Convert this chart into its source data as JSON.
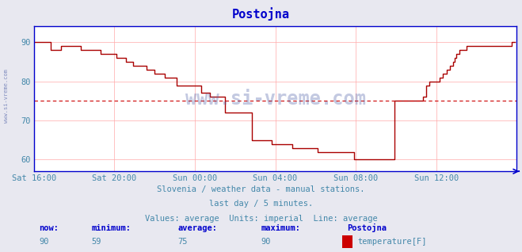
{
  "title": "Postojna",
  "subtitle_lines": [
    "Slovenia / weather data - manual stations.",
    "last day / 5 minutes.",
    "Values: average  Units: imperial  Line: average"
  ],
  "x_tick_labels": [
    "Sat 16:00",
    "Sat 20:00",
    "Sun 00:00",
    "Sun 04:00",
    "Sun 08:00",
    "Sun 12:00"
  ],
  "x_tick_positions": [
    0,
    48,
    96,
    144,
    192,
    240
  ],
  "ylim": [
    57,
    94
  ],
  "yticks": [
    60,
    70,
    80,
    90
  ],
  "xlim": [
    0,
    288
  ],
  "average_line_y": 75,
  "now": 90,
  "minimum": 59,
  "average": 75,
  "maximum": 90,
  "station": "Postojna",
  "series_label": "temperature[F]",
  "line_color": "#aa0000",
  "average_line_color": "#cc0000",
  "bg_color": "#e8e8f0",
  "plot_bg_color": "#ffffff",
  "grid_color": "#ffaaaa",
  "axis_color": "#0000cc",
  "title_color": "#0000cc",
  "text_color": "#4488aa",
  "label_color": "#0000cc",
  "watermark_color": "#5566aa",
  "legend_color": "#cc0000",
  "temp_data": [
    90,
    90,
    90,
    90,
    90,
    90,
    90,
    90,
    90,
    90,
    88,
    88,
    88,
    88,
    88,
    88,
    89,
    89,
    89,
    89,
    89,
    89,
    89,
    89,
    89,
    89,
    89,
    89,
    88,
    88,
    88,
    88,
    88,
    88,
    88,
    88,
    88,
    88,
    88,
    88,
    87,
    87,
    87,
    87,
    87,
    87,
    87,
    87,
    87,
    86,
    86,
    86,
    86,
    86,
    86,
    85,
    85,
    85,
    85,
    84,
    84,
    84,
    84,
    84,
    84,
    84,
    84,
    83,
    83,
    83,
    83,
    83,
    82,
    82,
    82,
    82,
    82,
    82,
    81,
    81,
    81,
    81,
    81,
    81,
    81,
    79,
    79,
    79,
    79,
    79,
    79,
    79,
    79,
    79,
    79,
    79,
    79,
    79,
    79,
    79,
    77,
    77,
    77,
    77,
    77,
    76,
    76,
    76,
    76,
    76,
    76,
    76,
    76,
    76,
    72,
    72,
    72,
    72,
    72,
    72,
    72,
    72,
    72,
    72,
    72,
    72,
    72,
    72,
    72,
    72,
    65,
    65,
    65,
    65,
    65,
    65,
    65,
    65,
    65,
    65,
    65,
    65,
    64,
    64,
    64,
    64,
    64,
    64,
    64,
    64,
    64,
    64,
    64,
    64,
    63,
    63,
    63,
    63,
    63,
    63,
    63,
    63,
    63,
    63,
    63,
    63,
    63,
    63,
    63,
    62,
    62,
    62,
    62,
    62,
    62,
    62,
    62,
    62,
    62,
    62,
    62,
    62,
    62,
    62,
    62,
    62,
    62,
    62,
    62,
    62,
    62,
    60,
    60,
    60,
    60,
    60,
    60,
    60,
    60,
    60,
    60,
    60,
    60,
    60,
    60,
    60,
    60,
    60,
    60,
    60,
    60,
    60,
    60,
    60,
    60,
    75,
    75,
    75,
    75,
    75,
    75,
    75,
    75,
    75,
    75,
    75,
    75,
    75,
    75,
    75,
    75,
    75,
    76,
    76,
    79,
    79,
    80,
    80,
    80,
    80,
    80,
    80,
    81,
    81,
    82,
    82,
    83,
    83,
    84,
    84,
    85,
    86,
    87,
    87,
    88,
    88,
    88,
    88,
    89,
    89,
    89,
    89,
    89,
    89,
    89,
    89,
    89,
    89,
    89,
    89,
    89,
    89,
    89,
    89,
    89,
    89,
    89,
    89,
    89,
    89,
    89,
    89,
    89,
    89,
    89,
    90,
    90,
    90
  ]
}
